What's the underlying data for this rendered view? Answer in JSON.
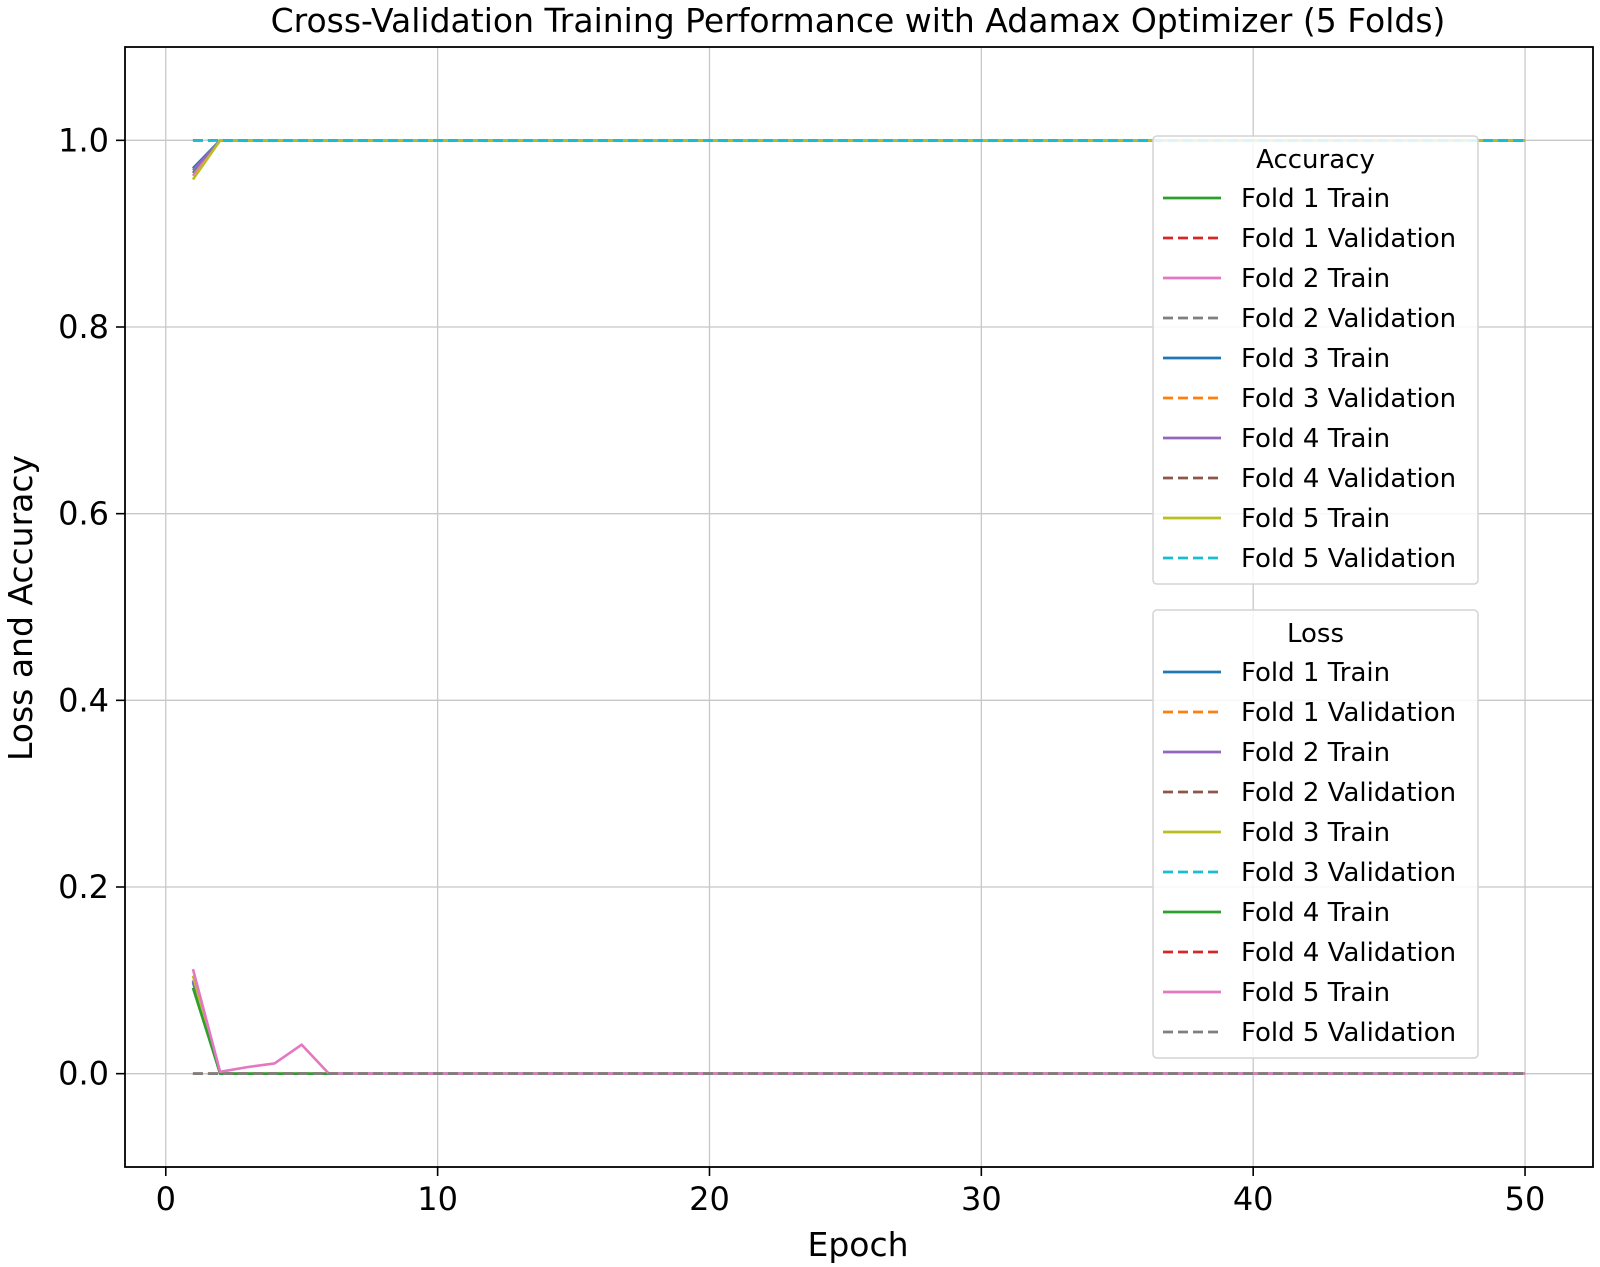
{
  "chart_data": {
    "type": "line",
    "title": "Cross-Validation Training Performance with Adamax Optimizer (5 Folds)",
    "xlabel": "Epoch",
    "ylabel": "Loss and Accuracy",
    "xlim": [
      -1.5,
      52.5
    ],
    "ylim": [
      -0.1,
      1.1
    ],
    "x_ticks": [
      0,
      10,
      20,
      30,
      40,
      50
    ],
    "y_ticks": [
      0.0,
      0.2,
      0.4,
      0.6,
      0.8,
      1.0
    ],
    "x_tick_labels": [
      "0",
      "10",
      "20",
      "30",
      "40",
      "50"
    ],
    "y_tick_labels": [
      "0.0",
      "0.2",
      "0.4",
      "0.6",
      "0.8",
      "1.0"
    ],
    "grid": true,
    "epochs": {
      "start": 1,
      "end": 50
    },
    "legends": [
      {
        "title": "Accuracy",
        "placement": "right-upper",
        "series": [
          {
            "name": "Fold 1 Train",
            "color": "#2ca02c",
            "dash": "solid",
            "values": [
              [
                1,
                0.965
              ],
              [
                2,
                1.0
              ],
              [
                50,
                1.0
              ]
            ]
          },
          {
            "name": "Fold 1 Validation",
            "color": "#d62728",
            "dash": "dashed",
            "values": [
              [
                1,
                1.0
              ],
              [
                50,
                1.0
              ]
            ]
          },
          {
            "name": "Fold 2 Train",
            "color": "#e377c2",
            "dash": "solid",
            "values": [
              [
                1,
                0.962
              ],
              [
                2,
                1.0
              ],
              [
                50,
                1.0
              ]
            ]
          },
          {
            "name": "Fold 2 Validation",
            "color": "#7f7f7f",
            "dash": "dashed",
            "values": [
              [
                1,
                1.0
              ],
              [
                50,
                1.0
              ]
            ]
          },
          {
            "name": "Fold 3 Train",
            "color": "#1f77b4",
            "dash": "solid",
            "values": [
              [
                1,
                0.97
              ],
              [
                2,
                1.0
              ],
              [
                50,
                1.0
              ]
            ]
          },
          {
            "name": "Fold 3 Validation",
            "color": "#ff7f0e",
            "dash": "dashed",
            "values": [
              [
                1,
                1.0
              ],
              [
                50,
                1.0
              ]
            ]
          },
          {
            "name": "Fold 4 Train",
            "color": "#9467bd",
            "dash": "solid",
            "values": [
              [
                1,
                0.968
              ],
              [
                2,
                1.0
              ],
              [
                50,
                1.0
              ]
            ]
          },
          {
            "name": "Fold 4 Validation",
            "color": "#8c564b",
            "dash": "dashed",
            "values": [
              [
                1,
                1.0
              ],
              [
                50,
                1.0
              ]
            ]
          },
          {
            "name": "Fold 5 Train",
            "color": "#bcbd22",
            "dash": "solid",
            "values": [
              [
                1,
                0.958
              ],
              [
                2,
                1.0
              ],
              [
                50,
                1.0
              ]
            ]
          },
          {
            "name": "Fold 5 Validation",
            "color": "#17becf",
            "dash": "dashed",
            "values": [
              [
                1,
                1.0
              ],
              [
                50,
                1.0
              ]
            ]
          }
        ]
      },
      {
        "title": "Loss",
        "placement": "right-lower",
        "series": [
          {
            "name": "Fold 1 Train",
            "color": "#1f77b4",
            "dash": "solid",
            "values": [
              [
                1,
                0.098
              ],
              [
                2,
                0.0
              ],
              [
                50,
                0.0
              ]
            ]
          },
          {
            "name": "Fold 1 Validation",
            "color": "#ff7f0e",
            "dash": "dashed",
            "values": [
              [
                1,
                0.0
              ],
              [
                50,
                0.0
              ]
            ]
          },
          {
            "name": "Fold 2 Train",
            "color": "#9467bd",
            "dash": "solid",
            "values": [
              [
                1,
                0.1
              ],
              [
                2,
                0.0
              ],
              [
                50,
                0.0
              ]
            ]
          },
          {
            "name": "Fold 2 Validation",
            "color": "#8c564b",
            "dash": "dashed",
            "values": [
              [
                1,
                0.0
              ],
              [
                50,
                0.0
              ]
            ]
          },
          {
            "name": "Fold 3 Train",
            "color": "#bcbd22",
            "dash": "solid",
            "values": [
              [
                1,
                0.105
              ],
              [
                2,
                0.0
              ],
              [
                50,
                0.0
              ]
            ]
          },
          {
            "name": "Fold 3 Validation",
            "color": "#17becf",
            "dash": "dashed",
            "values": [
              [
                1,
                0.0
              ],
              [
                50,
                0.0
              ]
            ]
          },
          {
            "name": "Fold 4 Train",
            "color": "#2ca02c",
            "dash": "solid",
            "values": [
              [
                1,
                0.092
              ],
              [
                2,
                0.0
              ],
              [
                50,
                0.0
              ]
            ]
          },
          {
            "name": "Fold 4 Validation",
            "color": "#d62728",
            "dash": "dashed",
            "values": [
              [
                1,
                0.0
              ],
              [
                50,
                0.0
              ]
            ]
          },
          {
            "name": "Fold 5 Train",
            "color": "#e377c2",
            "dash": "solid",
            "values": [
              [
                1,
                0.112
              ],
              [
                2,
                0.002
              ],
              [
                3,
                0.007
              ],
              [
                4,
                0.011
              ],
              [
                5,
                0.031
              ],
              [
                6,
                0.0
              ],
              [
                50,
                0.0
              ]
            ]
          },
          {
            "name": "Fold 5 Validation",
            "color": "#7f7f7f",
            "dash": "dashed",
            "values": [
              [
                1,
                0.0
              ],
              [
                50,
                0.0
              ]
            ]
          }
        ]
      }
    ]
  }
}
